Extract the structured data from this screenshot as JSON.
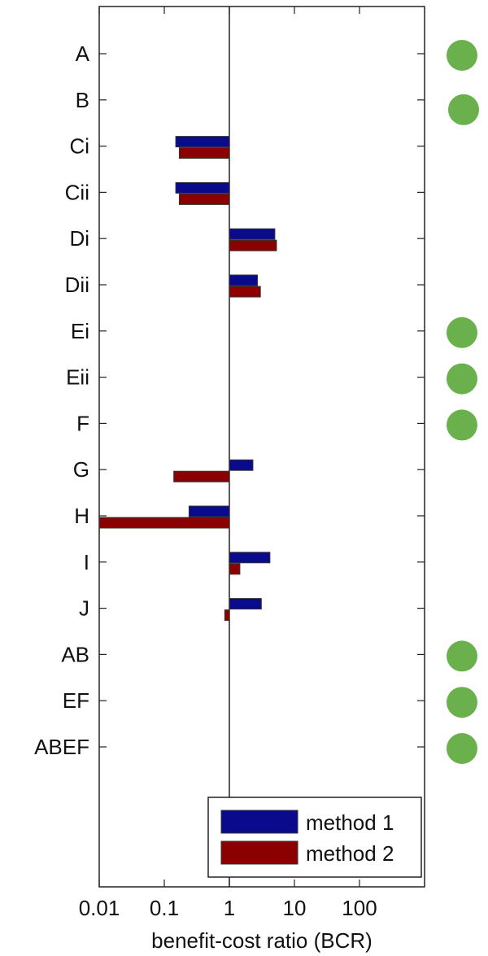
{
  "chart_data": {
    "type": "bar",
    "orientation": "horizontal",
    "categories": [
      "A",
      "B",
      "Ci",
      "Cii",
      "Di",
      "Dii",
      "Ei",
      "Eii",
      "F",
      "G",
      "H",
      "I",
      "J",
      "AB",
      "EF",
      "ABEF"
    ],
    "series": [
      {
        "name": "method 1",
        "color": "#0a0a8c",
        "values": [
          null,
          null,
          0.15,
          0.15,
          5.0,
          2.7,
          null,
          null,
          null,
          2.3,
          0.24,
          4.2,
          3.1,
          null,
          null,
          null
        ]
      },
      {
        "name": "method 2",
        "color": "#8b0000",
        "values": [
          null,
          null,
          0.17,
          0.17,
          5.3,
          3.0,
          null,
          null,
          null,
          0.14,
          0.01,
          1.45,
          0.85,
          null,
          null,
          null
        ]
      }
    ],
    "markers": {
      "color": "#6ab04c",
      "categories": [
        "A",
        "B",
        "Ei",
        "Eii",
        "F",
        "AB",
        "EF",
        "ABEF"
      ]
    },
    "xscale": "log",
    "xlim": [
      0.01,
      1000
    ],
    "xticks": [
      "0.01",
      "0.1",
      "1",
      "10",
      "100"
    ],
    "xlabel": "benefit-cost ratio (BCR)",
    "ylabel": "",
    "reference_line": 1,
    "legend": {
      "position": "bottom-right",
      "entries": [
        "method 1",
        "method 2"
      ]
    },
    "grid": false
  }
}
